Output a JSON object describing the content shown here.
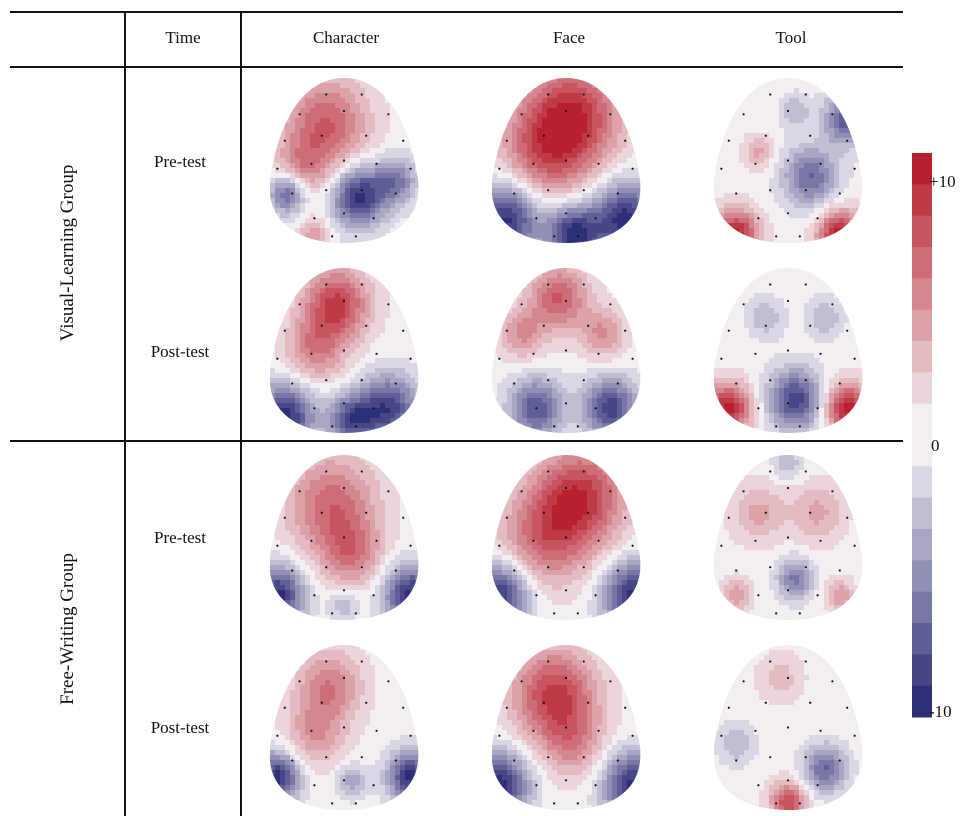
{
  "headers": {
    "time": "Time",
    "conditions": [
      "Character",
      "Face",
      "Tool"
    ]
  },
  "groups": [
    {
      "label": "Visual-Learning Group",
      "rows": [
        "Pre-test",
        "Post-test"
      ]
    },
    {
      "label": "Free-Writing Group",
      "rows": [
        "Pre-test",
        "Post-test"
      ]
    }
  ],
  "colorbar": {
    "max_label": "+10",
    "zero_label": "0",
    "min_label": "-10",
    "max": 10,
    "min": -10,
    "steps": 16,
    "colors": {
      "positive": "#b8202e",
      "neutral": "#f2eef2",
      "negative": "#2e2f78"
    }
  },
  "maps": [
    [
      {
        "blobs": [
          [
            0.38,
            0.28,
            0.7,
            0.28
          ],
          [
            0.22,
            0.55,
            0.4,
            0.18
          ],
          [
            0.6,
            0.72,
            -1.0,
            0.18
          ],
          [
            0.12,
            0.7,
            -0.8,
            0.12
          ],
          [
            0.85,
            0.62,
            -0.6,
            0.14
          ],
          [
            0.3,
            0.95,
            0.4,
            0.1
          ]
        ]
      },
      {
        "blobs": [
          [
            0.55,
            0.22,
            0.85,
            0.32
          ],
          [
            0.35,
            0.45,
            0.6,
            0.3
          ],
          [
            0.1,
            0.85,
            -1.0,
            0.22
          ],
          [
            0.9,
            0.85,
            -1.0,
            0.22
          ],
          [
            0.55,
            0.95,
            -1.0,
            0.18
          ]
        ]
      },
      {
        "blobs": [
          [
            0.15,
            0.95,
            1.0,
            0.15
          ],
          [
            0.85,
            0.95,
            1.0,
            0.15
          ],
          [
            0.9,
            0.25,
            -0.8,
            0.15
          ],
          [
            0.65,
            0.6,
            -0.7,
            0.18
          ],
          [
            0.3,
            0.45,
            0.35,
            0.1
          ],
          [
            0.55,
            0.2,
            -0.3,
            0.1
          ]
        ]
      }
    ],
    [
      {
        "blobs": [
          [
            0.45,
            0.22,
            0.85,
            0.22
          ],
          [
            0.3,
            0.5,
            0.5,
            0.2
          ],
          [
            0.1,
            0.9,
            -1.0,
            0.2
          ],
          [
            0.8,
            0.85,
            -0.9,
            0.2
          ],
          [
            0.55,
            0.92,
            -0.8,
            0.15
          ]
        ]
      },
      {
        "blobs": [
          [
            0.45,
            0.18,
            0.7,
            0.2
          ],
          [
            0.2,
            0.4,
            0.45,
            0.15
          ],
          [
            0.75,
            0.4,
            0.45,
            0.15
          ],
          [
            0.3,
            0.85,
            -0.8,
            0.18
          ],
          [
            0.8,
            0.85,
            -0.9,
            0.18
          ]
        ]
      },
      {
        "blobs": [
          [
            0.1,
            0.85,
            1.0,
            0.15
          ],
          [
            0.9,
            0.85,
            1.0,
            0.15
          ],
          [
            0.55,
            0.8,
            -0.9,
            0.18
          ],
          [
            0.35,
            0.3,
            -0.3,
            0.12
          ],
          [
            0.75,
            0.3,
            -0.3,
            0.12
          ]
        ]
      }
    ],
    [
      {
        "blobs": [
          [
            0.42,
            0.3,
            0.65,
            0.3
          ],
          [
            0.55,
            0.6,
            0.5,
            0.2
          ],
          [
            0.05,
            0.85,
            -1.0,
            0.18
          ],
          [
            0.95,
            0.85,
            -1.0,
            0.18
          ],
          [
            0.5,
            0.9,
            -0.3,
            0.1
          ]
        ]
      },
      {
        "blobs": [
          [
            0.6,
            0.25,
            0.85,
            0.3
          ],
          [
            0.35,
            0.5,
            0.6,
            0.3
          ],
          [
            0.05,
            0.85,
            -1.0,
            0.2
          ],
          [
            0.95,
            0.85,
            -1.0,
            0.2
          ]
        ]
      },
      {
        "blobs": [
          [
            0.3,
            0.35,
            0.35,
            0.18
          ],
          [
            0.7,
            0.35,
            0.35,
            0.18
          ],
          [
            0.55,
            0.75,
            -0.6,
            0.12
          ],
          [
            0.15,
            0.85,
            0.4,
            0.1
          ],
          [
            0.85,
            0.85,
            0.4,
            0.1
          ],
          [
            0.5,
            0.05,
            -0.3,
            0.1
          ]
        ]
      }
    ],
    [
      {
        "blobs": [
          [
            0.4,
            0.25,
            0.55,
            0.22
          ],
          [
            0.3,
            0.55,
            0.4,
            0.2
          ],
          [
            0.05,
            0.8,
            -1.0,
            0.15
          ],
          [
            0.95,
            0.8,
            -1.0,
            0.15
          ],
          [
            0.55,
            0.82,
            -0.4,
            0.1
          ]
        ]
      },
      {
        "blobs": [
          [
            0.42,
            0.3,
            0.85,
            0.28
          ],
          [
            0.55,
            0.6,
            0.4,
            0.22
          ],
          [
            0.05,
            0.85,
            -1.0,
            0.2
          ],
          [
            0.95,
            0.85,
            -1.0,
            0.2
          ]
        ]
      },
      {
        "blobs": [
          [
            0.45,
            0.2,
            0.25,
            0.15
          ],
          [
            0.75,
            0.75,
            -0.7,
            0.14
          ],
          [
            0.5,
            0.95,
            0.8,
            0.12
          ],
          [
            0.15,
            0.6,
            -0.3,
            0.12
          ]
        ]
      }
    ]
  ]
}
